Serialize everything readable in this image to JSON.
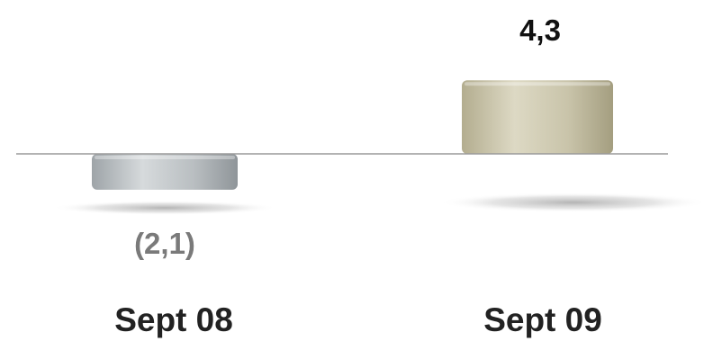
{
  "chart_data": {
    "type": "bar",
    "categories": [
      "Sept 08",
      "Sept 09"
    ],
    "values": [
      -2.1,
      4.3
    ],
    "value_labels": [
      "(2,1)",
      "4,3"
    ],
    "colors": {
      "negative_bar": "#b7bcbf",
      "positive_bar": "#cbc6ad",
      "negative_label": "#7a7a7a",
      "positive_label": "#111111",
      "baseline": "#9a9a9a"
    },
    "grid": false,
    "legend": "none",
    "title": "",
    "xlabel": "",
    "ylabel": ""
  }
}
